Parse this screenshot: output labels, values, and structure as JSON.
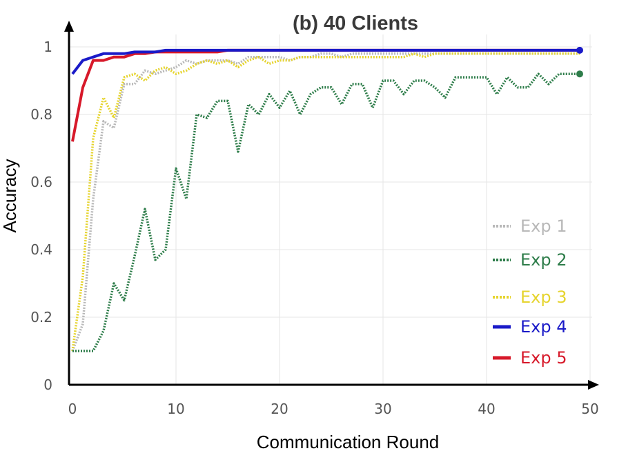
{
  "chart_data": {
    "type": "line",
    "title": "(b) 40 Clients",
    "xlabel": "Communication Round",
    "ylabel": "Accuracy",
    "xlim": [
      0,
      50
    ],
    "ylim": [
      0,
      1
    ],
    "x_ticks": [
      "0",
      "10",
      "20",
      "30",
      "40",
      "50"
    ],
    "y_ticks": [
      "0",
      "0.2",
      "0.4",
      "0.6",
      "0.8",
      "1"
    ],
    "grid": true,
    "legend_position": "bottom-right",
    "series": [
      {
        "name": "Exp 1",
        "color": "#b8b8b8",
        "style": "dotted",
        "end_marker": false,
        "x": [
          0,
          1,
          2,
          3,
          4,
          5,
          6,
          7,
          8,
          9,
          10,
          11,
          12,
          13,
          14,
          15,
          16,
          17,
          18,
          19,
          20,
          21,
          22,
          23,
          24,
          25,
          26,
          27,
          28,
          29,
          30,
          31,
          32,
          33,
          34,
          35,
          36,
          37,
          38,
          39,
          40,
          41,
          42,
          43,
          44,
          45,
          46,
          47,
          48,
          49
        ],
        "values": [
          0.1,
          0.18,
          0.55,
          0.78,
          0.76,
          0.89,
          0.89,
          0.93,
          0.92,
          0.93,
          0.94,
          0.96,
          0.95,
          0.96,
          0.96,
          0.96,
          0.95,
          0.97,
          0.97,
          0.97,
          0.97,
          0.96,
          0.97,
          0.97,
          0.98,
          0.98,
          0.97,
          0.98,
          0.98,
          0.98,
          0.98,
          0.98,
          0.98,
          0.98,
          0.98,
          0.98,
          0.98,
          0.98,
          0.98,
          0.98,
          0.98,
          0.98,
          0.98,
          0.98,
          0.98,
          0.98,
          0.98,
          0.98,
          0.98,
          0.98
        ]
      },
      {
        "name": "Exp 2",
        "color": "#2e7d4a",
        "style": "dotted",
        "end_marker": true,
        "x": [
          0,
          1,
          2,
          3,
          4,
          5,
          6,
          7,
          8,
          9,
          10,
          11,
          12,
          13,
          14,
          15,
          16,
          17,
          18,
          19,
          20,
          21,
          22,
          23,
          24,
          25,
          26,
          27,
          28,
          29,
          30,
          31,
          32,
          33,
          34,
          35,
          36,
          37,
          38,
          39,
          40,
          41,
          42,
          43,
          44,
          45,
          46,
          47,
          48,
          49
        ],
        "values": [
          0.1,
          0.1,
          0.1,
          0.16,
          0.3,
          0.25,
          0.38,
          0.52,
          0.37,
          0.4,
          0.64,
          0.55,
          0.8,
          0.79,
          0.84,
          0.84,
          0.69,
          0.83,
          0.8,
          0.86,
          0.82,
          0.87,
          0.8,
          0.86,
          0.88,
          0.88,
          0.83,
          0.89,
          0.89,
          0.82,
          0.9,
          0.9,
          0.86,
          0.9,
          0.9,
          0.88,
          0.85,
          0.91,
          0.91,
          0.91,
          0.91,
          0.86,
          0.91,
          0.88,
          0.88,
          0.92,
          0.89,
          0.92,
          0.92,
          0.92
        ]
      },
      {
        "name": "Exp 3",
        "color": "#e6d42e",
        "style": "dotted",
        "end_marker": false,
        "x": [
          0,
          1,
          2,
          3,
          4,
          5,
          6,
          7,
          8,
          9,
          10,
          11,
          12,
          13,
          14,
          15,
          16,
          17,
          18,
          19,
          20,
          21,
          22,
          23,
          24,
          25,
          26,
          27,
          28,
          29,
          30,
          31,
          32,
          33,
          34,
          35,
          36,
          37,
          38,
          39,
          40,
          41,
          42,
          43,
          44,
          45,
          46,
          47,
          48,
          49
        ],
        "values": [
          0.1,
          0.32,
          0.73,
          0.85,
          0.79,
          0.91,
          0.92,
          0.9,
          0.93,
          0.94,
          0.92,
          0.93,
          0.95,
          0.96,
          0.95,
          0.96,
          0.94,
          0.96,
          0.97,
          0.95,
          0.96,
          0.96,
          0.97,
          0.97,
          0.97,
          0.97,
          0.97,
          0.97,
          0.97,
          0.97,
          0.97,
          0.97,
          0.97,
          0.98,
          0.97,
          0.98,
          0.98,
          0.98,
          0.98,
          0.98,
          0.98,
          0.98,
          0.98,
          0.98,
          0.98,
          0.98,
          0.98,
          0.98,
          0.98,
          0.98
        ]
      },
      {
        "name": "Exp 4",
        "color": "#1a1ac8",
        "style": "solid",
        "end_marker": true,
        "x": [
          0,
          1,
          2,
          3,
          4,
          5,
          6,
          7,
          8,
          9,
          10,
          11,
          12,
          13,
          14,
          15,
          16,
          17,
          18,
          19,
          20,
          21,
          22,
          23,
          24,
          25,
          26,
          27,
          28,
          29,
          30,
          31,
          32,
          33,
          34,
          35,
          36,
          37,
          38,
          39,
          40,
          41,
          42,
          43,
          44,
          45,
          46,
          47,
          48,
          49
        ],
        "values": [
          0.92,
          0.96,
          0.97,
          0.98,
          0.98,
          0.98,
          0.985,
          0.985,
          0.985,
          0.99,
          0.99,
          0.99,
          0.99,
          0.99,
          0.99,
          0.99,
          0.99,
          0.99,
          0.99,
          0.99,
          0.99,
          0.99,
          0.99,
          0.99,
          0.99,
          0.99,
          0.99,
          0.99,
          0.99,
          0.99,
          0.99,
          0.99,
          0.99,
          0.99,
          0.99,
          0.99,
          0.99,
          0.99,
          0.99,
          0.99,
          0.99,
          0.99,
          0.99,
          0.99,
          0.99,
          0.99,
          0.99,
          0.99,
          0.99,
          0.99
        ]
      },
      {
        "name": "Exp 5",
        "color": "#d7192a",
        "style": "solid",
        "end_marker": false,
        "x": [
          0,
          1,
          2,
          3,
          4,
          5,
          6,
          7,
          8,
          9,
          10,
          11,
          12,
          13,
          14,
          15,
          16,
          17,
          18,
          19,
          20,
          21,
          22,
          23,
          24,
          25,
          26,
          27,
          28,
          29,
          30,
          31,
          32,
          33,
          34,
          35,
          36,
          37,
          38,
          39,
          40,
          41,
          42,
          43,
          44,
          45,
          46,
          47,
          48,
          49
        ],
        "values": [
          0.72,
          0.88,
          0.96,
          0.96,
          0.97,
          0.97,
          0.98,
          0.98,
          0.985,
          0.985,
          0.985,
          0.985,
          0.985,
          0.985,
          0.985,
          0.99,
          0.99,
          0.99,
          0.99,
          0.99,
          0.99,
          0.99,
          0.99,
          0.99,
          0.99,
          0.99,
          0.99,
          0.99,
          0.99,
          0.99,
          0.99,
          0.99,
          0.99,
          0.99,
          0.99,
          0.99,
          0.99,
          0.99,
          0.99,
          0.99,
          0.99,
          0.99,
          0.99,
          0.99,
          0.99,
          0.99,
          0.99,
          0.99,
          0.99,
          0.99
        ]
      }
    ]
  }
}
